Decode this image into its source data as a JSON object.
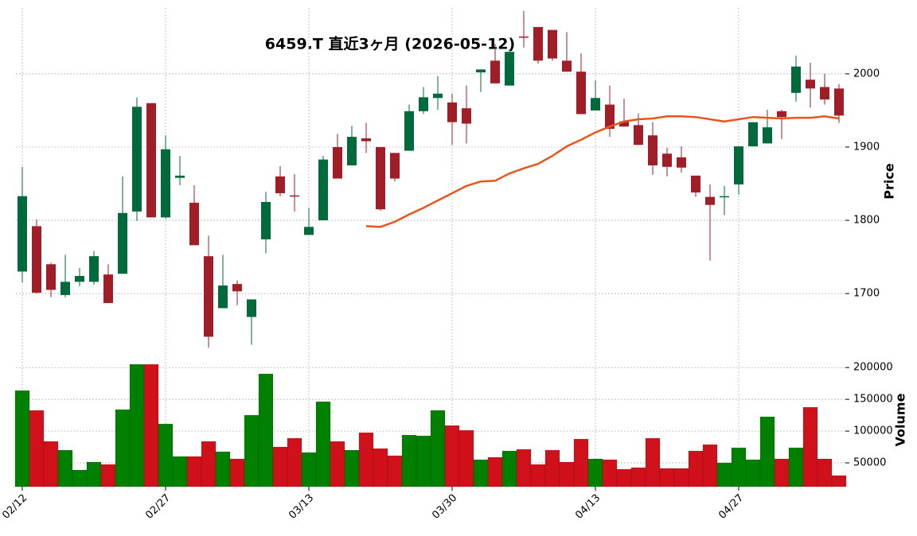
{
  "chart_data": {
    "type": "candlestick",
    "title": "6459.T  直近3ヶ月  (2026-05-12)",
    "categories": [
      "02/12",
      null,
      null,
      null,
      null,
      null,
      null,
      null,
      null,
      null,
      "02/27",
      null,
      null,
      null,
      null,
      null,
      null,
      null,
      null,
      null,
      "03/13",
      null,
      null,
      null,
      null,
      null,
      null,
      null,
      null,
      null,
      "03/30",
      null,
      null,
      null,
      null,
      null,
      null,
      null,
      null,
      null,
      "04/13",
      null,
      null,
      null,
      null,
      null,
      null,
      null,
      null,
      null,
      "04/27",
      null,
      null,
      null,
      null,
      null,
      null,
      null
    ],
    "open": [
      1730,
      1792,
      1740,
      1698,
      1716,
      1716,
      1726,
      1727,
      1812,
      1960,
      1804,
      1858,
      1824,
      1751,
      1680,
      1713,
      1668,
      1774,
      1860,
      1834,
      1780,
      1800,
      1900,
      1875,
      1912,
      1900,
      1892,
      1895,
      1949,
      1967,
      1961,
      1953,
      2002,
      2018,
      1984,
      2051,
      2064,
      2060,
      2018,
      2003,
      1950,
      1958,
      1935,
      1930,
      1916,
      1891,
      1886,
      1861,
      1832,
      1832,
      1849,
      1901,
      1905,
      1949,
      1974,
      1992,
      1982,
      1980
    ],
    "high": [
      1873,
      1801,
      1742,
      1753,
      1735,
      1758,
      1740,
      1860,
      1968,
      1960,
      1916,
      1888,
      1848,
      1779,
      1753,
      1718,
      1692,
      1839,
      1874,
      1863,
      1817,
      1888,
      1918,
      1929,
      1933,
      1900,
      1892,
      1958,
      1982,
      1997,
      1973,
      1984,
      2006,
      2041,
      2034,
      2086,
      2064,
      2060,
      2057,
      2028,
      1991,
      1984,
      1966,
      1946,
      1934,
      1899,
      1901,
      1861,
      1849,
      1847,
      1901,
      1934,
      1951,
      1951,
      2025,
      2015,
      2000,
      1986
    ],
    "low": [
      1715,
      1700,
      1695,
      1695,
      1710,
      1712,
      1687,
      1727,
      1799,
      1804,
      1802,
      1848,
      1766,
      1626,
      1680,
      1684,
      1630,
      1755,
      1833,
      1812,
      1780,
      1800,
      1857,
      1875,
      1892,
      1813,
      1853,
      1895,
      1945,
      1951,
      1903,
      1905,
      1975,
      1987,
      1984,
      2036,
      2014,
      2018,
      2003,
      1945,
      1950,
      1914,
      1928,
      1903,
      1862,
      1860,
      1865,
      1832,
      1745,
      1807,
      1835,
      1901,
      1905,
      1911,
      1962,
      1954,
      1958,
      1933
    ],
    "close": [
      1833,
      1701,
      1705,
      1716,
      1724,
      1751,
      1687,
      1810,
      1955,
      1804,
      1897,
      1861,
      1766,
      1641,
      1711,
      1703,
      1692,
      1825,
      1837,
      1833,
      1791,
      1883,
      1857,
      1914,
      1908,
      1815,
      1857,
      1949,
      1968,
      1973,
      1934,
      1932,
      2006,
      1987,
      2030,
      2050,
      2018,
      2021,
      2003,
      1945,
      1967,
      1925,
      1928,
      1903,
      1875,
      1873,
      1872,
      1838,
      1821,
      1833,
      1901,
      1934,
      1927,
      1941,
      2010,
      1980,
      1965,
      1943
    ],
    "ma": [
      null,
      null,
      null,
      null,
      null,
      null,
      null,
      null,
      null,
      null,
      null,
      null,
      null,
      null,
      null,
      null,
      null,
      null,
      null,
      null,
      null,
      null,
      null,
      null,
      1792,
      1791,
      1798,
      1808,
      1817,
      1827,
      1837,
      1847,
      1853,
      1854,
      1864,
      1871,
      1877,
      1888,
      1901,
      1910,
      1920,
      1928,
      1935,
      1938,
      1939,
      1942,
      1942,
      1941,
      1938,
      1935,
      1938,
      1941,
      1940,
      1939,
      1940,
      1940,
      1942,
      1939
    ],
    "volume": [
      163750,
      132500,
      83750,
      70000,
      38750,
      51250,
      47500,
      133750,
      205000,
      205000,
      111250,
      60000,
      60000,
      83750,
      67500,
      56250,
      125000,
      190000,
      75000,
      88750,
      66250,
      146250,
      83750,
      70000,
      97500,
      72500,
      61250,
      93750,
      92500,
      132500,
      108750,
      101250,
      55000,
      58750,
      68750,
      71250,
      47500,
      70000,
      51250,
      87500,
      56250,
      55000,
      40000,
      42500,
      88750,
      41250,
      41250,
      68750,
      78750,
      50000,
      73750,
      55000,
      122500,
      56250,
      73750,
      137500,
      56250,
      30000
    ],
    "ylabel": "Price",
    "ylim": [
      1623,
      2090
    ],
    "yticks": [
      1700,
      1800,
      1900,
      2000
    ],
    "volume_ylabel": "Volume",
    "volume_ylim": [
      12500,
      224000
    ],
    "volume_yticks": [
      50000,
      100000,
      150000,
      200000
    ],
    "up_color": "#006a3c",
    "down_color": "#a01e28",
    "ma_color": "#e8561c",
    "volume_up_color": "#008000",
    "volume_down_color": "#d0101a",
    "grid": true
  }
}
